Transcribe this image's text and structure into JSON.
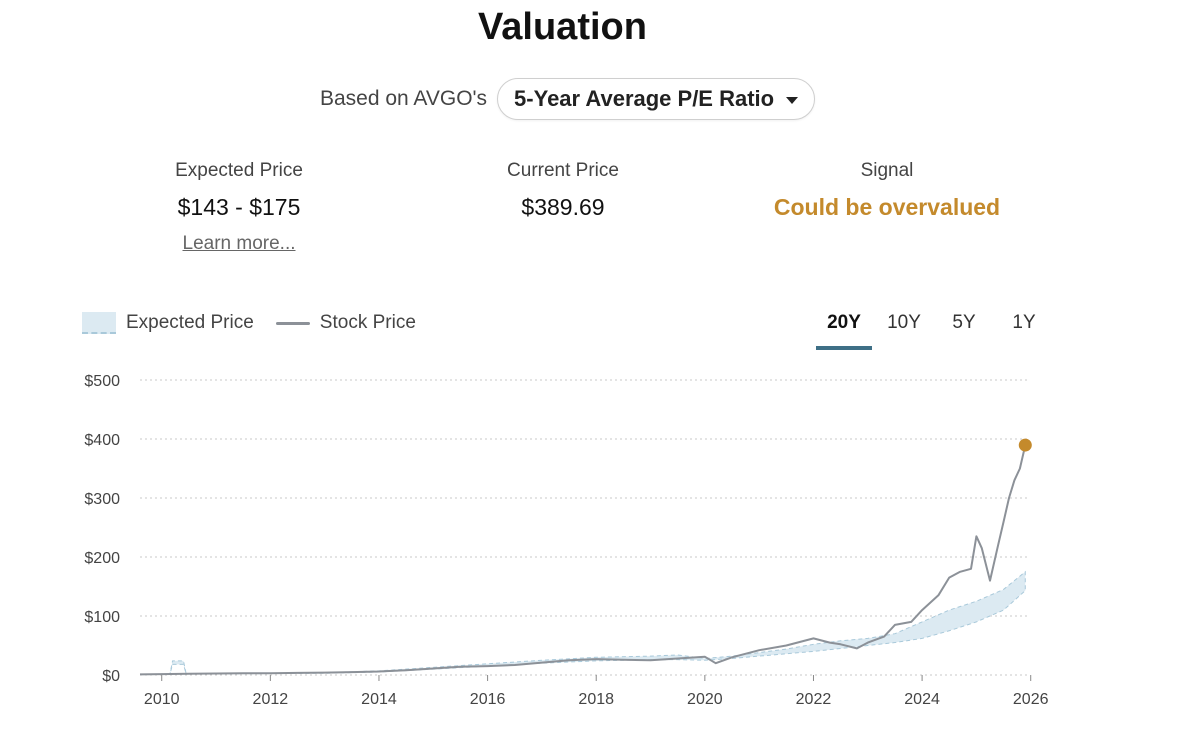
{
  "header": {
    "title": "Valuation"
  },
  "basis": {
    "prefix": "Based on AVGO's",
    "selected": "5-Year Average P/E Ratio"
  },
  "stats": {
    "expected": {
      "label": "Expected Price",
      "value": "$143 - $175",
      "link": "Learn more..."
    },
    "current": {
      "label": "Current Price",
      "value": "$389.69"
    },
    "signal": {
      "label": "Signal",
      "value": "Could be overvalued",
      "color": "#c48a2c"
    }
  },
  "legend": {
    "expected": "Expected Price",
    "stock": "Stock Price"
  },
  "ranges": [
    "20Y",
    "10Y",
    "5Y",
    "1Y"
  ],
  "active_range": "20Y",
  "colors": {
    "stock_line": "#8c9198",
    "band_fill": "#dceaf2",
    "band_stroke": "#a9c9da",
    "marker": "#c48a2c",
    "tab_active": "#3e6f86"
  },
  "chart_data": {
    "type": "area",
    "xlim": [
      2009.6,
      2025.95
    ],
    "ylim": [
      0,
      500
    ],
    "y_ticks": [
      "$0",
      "$100",
      "$200",
      "$300",
      "$400",
      "$500"
    ],
    "y_tick_values": [
      0,
      100,
      200,
      300,
      400,
      500
    ],
    "x_ticks": [
      "2010",
      "2012",
      "2014",
      "2016",
      "2018",
      "2020",
      "2022",
      "2024",
      "2026"
    ],
    "x_tick_values": [
      2010,
      2012,
      2014,
      2016,
      2018,
      2020,
      2022,
      2024,
      2026
    ],
    "grid": true,
    "series": [
      {
        "name": "Stock Price",
        "x": [
          2009.6,
          2010.0,
          2010.5,
          2011.0,
          2011.5,
          2012.0,
          2012.5,
          2013.0,
          2013.5,
          2014.0,
          2014.5,
          2015.0,
          2015.5,
          2016.0,
          2016.5,
          2017.0,
          2017.5,
          2018.0,
          2018.5,
          2019.0,
          2019.5,
          2020.0,
          2020.2,
          2020.5,
          2021.0,
          2021.5,
          2022.0,
          2022.3,
          2022.5,
          2022.8,
          2023.0,
          2023.3,
          2023.5,
          2023.8,
          2024.0,
          2024.3,
          2024.5,
          2024.7,
          2024.9,
          2025.0,
          2025.1,
          2025.25,
          2025.4,
          2025.5,
          2025.6,
          2025.7,
          2025.8,
          2025.9
        ],
        "y": [
          1,
          1.5,
          2,
          2.5,
          3,
          3,
          3.5,
          4,
          5,
          6,
          8,
          11,
          14,
          15,
          17,
          21,
          25,
          27,
          26,
          25,
          28,
          31,
          20,
          30,
          42,
          50,
          62,
          55,
          52,
          45,
          55,
          65,
          85,
          90,
          110,
          135,
          165,
          175,
          180,
          235,
          215,
          160,
          220,
          260,
          300,
          330,
          350,
          389.69
        ]
      },
      {
        "name": "Expected Price",
        "x": [
          2009.6,
          2010.15,
          2010.2,
          2010.4,
          2010.45,
          2011.0,
          2012.0,
          2013.0,
          2014.0,
          2015.0,
          2016.0,
          2017.0,
          2018.0,
          2019.0,
          2019.5,
          2020.0,
          2020.5,
          2021.0,
          2021.5,
          2022.0,
          2022.5,
          2023.0,
          2023.5,
          2024.0,
          2024.5,
          2025.0,
          2025.5,
          2025.9
        ],
        "low": [
          1,
          1,
          18,
          18,
          2,
          2,
          2.5,
          3,
          5,
          10,
          15,
          20,
          24,
          26,
          26,
          25,
          28,
          32,
          36,
          40,
          45,
          50,
          55,
          62,
          75,
          90,
          110,
          143
        ],
        "high": [
          1,
          1,
          24,
          24,
          2,
          2.5,
          3,
          4,
          7,
          13,
          19,
          25,
          30,
          32,
          34,
          28,
          32,
          38,
          44,
          52,
          58,
          62,
          70,
          90,
          110,
          125,
          145,
          175
        ]
      }
    ],
    "current_marker": {
      "x": 2025.9,
      "y": 389.69
    }
  }
}
